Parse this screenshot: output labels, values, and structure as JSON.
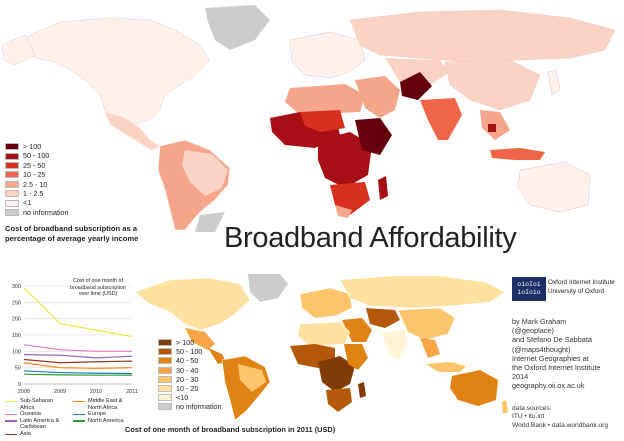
{
  "title": "Broadband Affordability",
  "top_map": {
    "caption": "Cost of broadband subscription as a percentage of average yearly income",
    "legend": [
      {
        "label": "> 100",
        "color": "#67000d"
      },
      {
        "label": "50 - 100",
        "color": "#a50f15"
      },
      {
        "label": "25 - 50",
        "color": "#d7301f"
      },
      {
        "label": "10 - 25",
        "color": "#ef6548"
      },
      {
        "label": "2.5 - 10",
        "color": "#f4a58a"
      },
      {
        "label": "1 - 2.5",
        "color": "#fbd3c4"
      },
      {
        "label": "<1",
        "color": "#fff1ec"
      },
      {
        "label": "no information",
        "color": "#cccccc"
      }
    ]
  },
  "bottom_map": {
    "caption": "Cost of one month of broadband subscription in 2011 (USD)",
    "legend": [
      {
        "label": "> 100",
        "color": "#7f3b08"
      },
      {
        "label": "50 - 100",
        "color": "#b35806"
      },
      {
        "label": "40 - 50",
        "color": "#e08214"
      },
      {
        "label": "30 - 40",
        "color": "#f6a445"
      },
      {
        "label": "20 - 30",
        "color": "#fdc56b"
      },
      {
        "label": "10 - 20",
        "color": "#fee0a0"
      },
      {
        "label": "<10",
        "color": "#fff5d6"
      },
      {
        "label": "no information",
        "color": "#cccccc"
      }
    ]
  },
  "chart_data": {
    "type": "line",
    "title": "Cost of one month of broadband subscription over time (USD)",
    "x": [
      2008,
      2009,
      2010,
      2011
    ],
    "ylim": [
      0,
      300
    ],
    "yticks": [
      0,
      50,
      100,
      150,
      200,
      250,
      300
    ],
    "series": [
      {
        "name": "Sub-Saharan Africa",
        "color": "#f0e442",
        "values": [
          295,
          185,
          165,
          145
        ]
      },
      {
        "name": "Oceania",
        "color": "#e377c2",
        "values": [
          120,
          105,
          100,
          100
        ]
      },
      {
        "name": "Latin America & Caribbean",
        "color": "#9467bd",
        "values": [
          90,
          88,
          80,
          85
        ]
      },
      {
        "name": "Asia",
        "color": "#8c3a24",
        "values": [
          75,
          65,
          68,
          70
        ]
      },
      {
        "name": "Middle East & North Africa",
        "color": "#ff7f0e",
        "values": [
          65,
          50,
          48,
          50
        ]
      },
      {
        "name": "Europe",
        "color": "#1f77b4",
        "values": [
          40,
          35,
          33,
          32
        ]
      },
      {
        "name": "North America",
        "color": "#2ca02c",
        "values": [
          30,
          28,
          27,
          27
        ]
      }
    ]
  },
  "institute": {
    "line1": "Oxford Internet Institute",
    "line2": "University of Oxford"
  },
  "credits": [
    "by Mark Graham",
    "(@geoplace)",
    "and Stefano De Sabbata",
    "(@maps4thought)",
    "Internet Geographies at",
    "the Oxford Internet Institute",
    "2014",
    "geography.oii.ox.ac.uk"
  ],
  "sources": [
    "data sources:",
    "ITU • itu.int",
    "World Bank • data.worldbank.org"
  ]
}
